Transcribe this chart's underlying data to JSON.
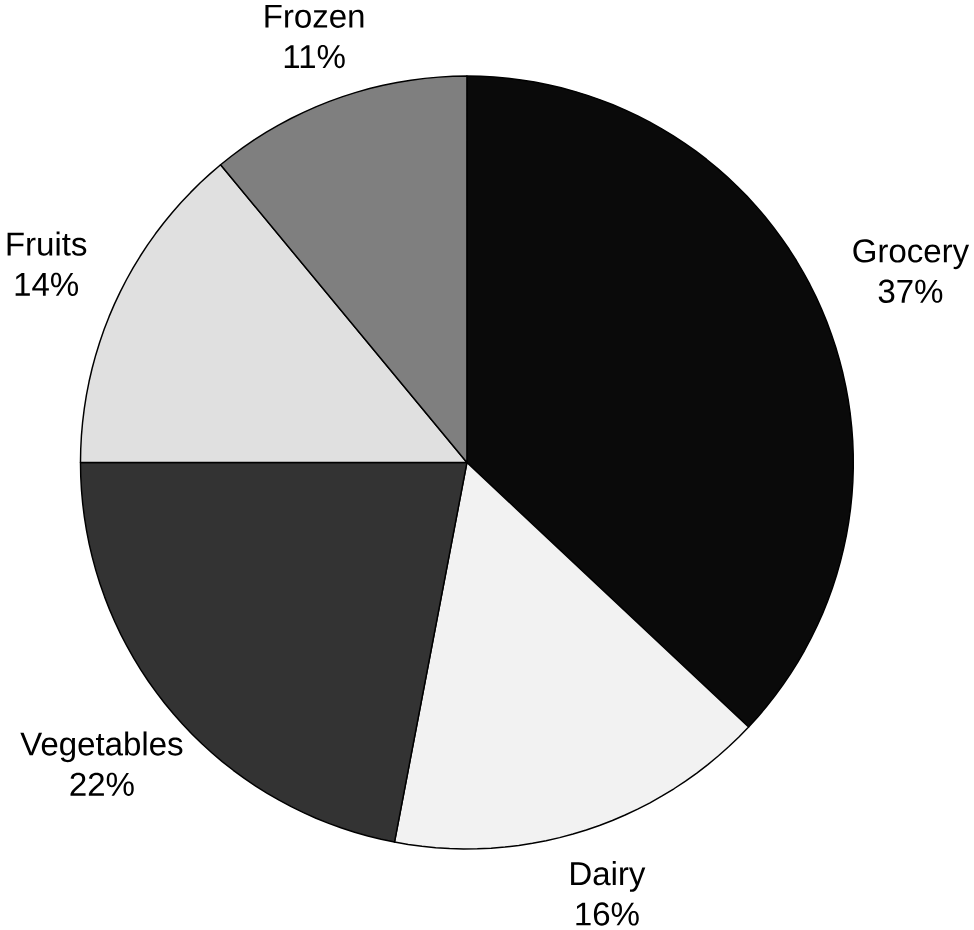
{
  "chart_data": {
    "type": "pie",
    "categories": [
      "Grocery",
      "Dairy",
      "Vegetables",
      "Fruits",
      "Frozen"
    ],
    "values": [
      37,
      16,
      22,
      14,
      11
    ],
    "value_labels": [
      "37%",
      "16%",
      "22%",
      "14%",
      "11%"
    ],
    "colors": [
      "#0a0a0a",
      "#f2f2f2",
      "#333333",
      "#e0e0e0",
      "#7f7f7f"
    ]
  }
}
